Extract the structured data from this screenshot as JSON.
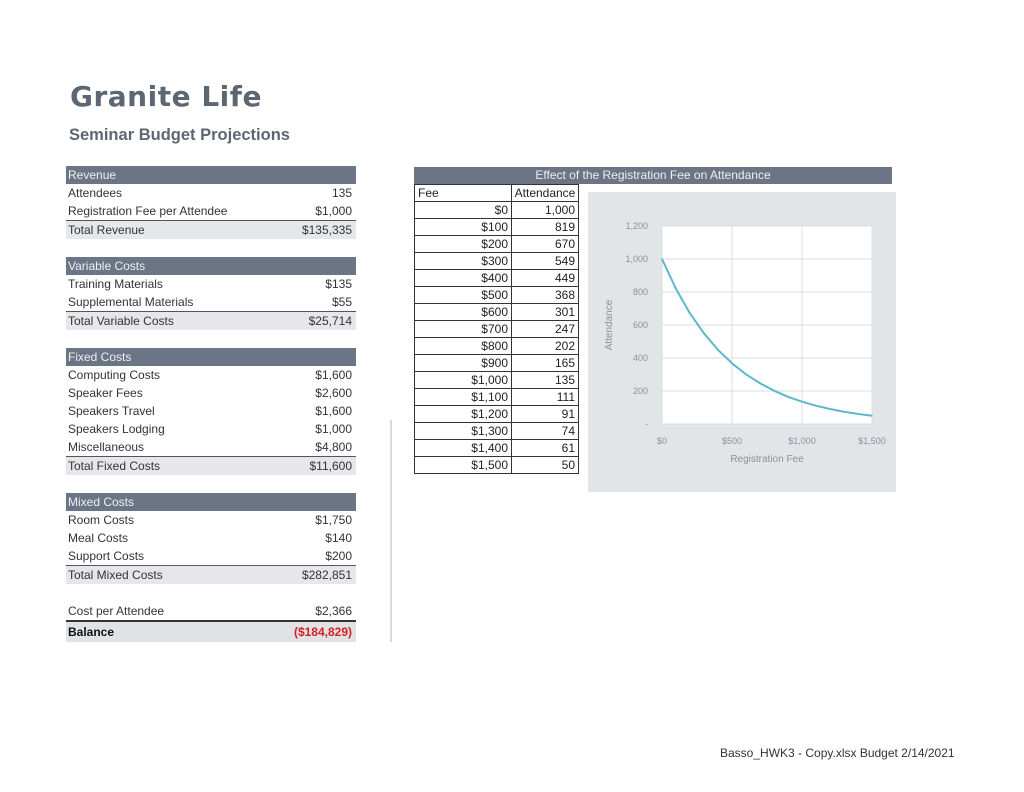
{
  "header": {
    "brand": "Granite Life",
    "subtitle": "Seminar Budget Projections"
  },
  "budget": {
    "revenue": {
      "heading": "Revenue",
      "rows": [
        {
          "label": "Attendees",
          "value": "135"
        },
        {
          "label": "Registration Fee per Attendee",
          "value": "$1,000"
        }
      ],
      "total": {
        "label": "Total Revenue",
        "value": "$135,335"
      }
    },
    "variable": {
      "heading": "Variable Costs",
      "rows": [
        {
          "label": "Training Materials",
          "value": "$135"
        },
        {
          "label": "Supplemental Materials",
          "value": "$55"
        }
      ],
      "total": {
        "label": "Total Variable Costs",
        "value": "$25,714"
      }
    },
    "fixed": {
      "heading": "Fixed Costs",
      "rows": [
        {
          "label": "Computing Costs",
          "value": "$1,600"
        },
        {
          "label": "Speaker Fees",
          "value": "$2,600"
        },
        {
          "label": "Speakers Travel",
          "value": "$1,600"
        },
        {
          "label": "Speakers Lodging",
          "value": "$1,000"
        },
        {
          "label": "Miscellaneous",
          "value": "$4,800"
        }
      ],
      "total": {
        "label": "Total Fixed Costs",
        "value": "$11,600"
      }
    },
    "mixed": {
      "heading": "Mixed Costs",
      "rows": [
        {
          "label": "Room Costs",
          "value": "$1,750"
        },
        {
          "label": "Meal Costs",
          "value": "$140"
        },
        {
          "label": "Support Costs",
          "value": "$200"
        }
      ],
      "total": {
        "label": "Total Mixed Costs",
        "value": "$282,851"
      }
    },
    "summary": {
      "cost_per_attendee_label": "Cost per Attendee",
      "cost_per_attendee_value": "$2,366",
      "balance_label": "Balance",
      "balance_value": "($184,829)"
    }
  },
  "fee_table": {
    "title": "Effect of the Registration Fee on Attendance",
    "col_fee": "Fee",
    "col_attendance": "Attendance",
    "rows": [
      {
        "fee": "$0",
        "attendance": "1,000"
      },
      {
        "fee": "$100",
        "attendance": "819"
      },
      {
        "fee": "$200",
        "attendance": "670"
      },
      {
        "fee": "$300",
        "attendance": "549"
      },
      {
        "fee": "$400",
        "attendance": "449"
      },
      {
        "fee": "$500",
        "attendance": "368"
      },
      {
        "fee": "$600",
        "attendance": "301"
      },
      {
        "fee": "$700",
        "attendance": "247"
      },
      {
        "fee": "$800",
        "attendance": "202"
      },
      {
        "fee": "$900",
        "attendance": "165"
      },
      {
        "fee": "$1,000",
        "attendance": "135"
      },
      {
        "fee": "$1,100",
        "attendance": "111"
      },
      {
        "fee": "$1,200",
        "attendance": "91"
      },
      {
        "fee": "$1,300",
        "attendance": "74"
      },
      {
        "fee": "$1,400",
        "attendance": "61"
      },
      {
        "fee": "$1,500",
        "attendance": "50"
      }
    ]
  },
  "chart_data": {
    "type": "line",
    "title": "",
    "xlabel": "Registration Fee",
    "ylabel": "Attendance",
    "xlim": [
      0,
      1500
    ],
    "ylim": [
      0,
      1200
    ],
    "x_ticks": [
      0,
      500,
      1000,
      1500
    ],
    "x_tick_labels": [
      "$0",
      "$500",
      "$1,000",
      "$1,500"
    ],
    "y_ticks": [
      0,
      200,
      400,
      600,
      800,
      1000,
      1200
    ],
    "y_tick_labels": [
      "-",
      "200",
      "400",
      "600",
      "800",
      "1,000",
      "1,200"
    ],
    "grid": true,
    "series": [
      {
        "name": "Attendance",
        "color": "#5bb8cc",
        "x": [
          0,
          100,
          200,
          300,
          400,
          500,
          600,
          700,
          800,
          900,
          1000,
          1100,
          1200,
          1300,
          1400,
          1500
        ],
        "y": [
          1000,
          819,
          670,
          549,
          449,
          368,
          301,
          247,
          202,
          165,
          135,
          111,
          91,
          74,
          61,
          50
        ]
      }
    ]
  },
  "footer": {
    "text": "Basso_HWK3 - Copy.xlsx Budget 2/14/2021"
  },
  "colors": {
    "header_fill": "#6b7585",
    "total_fill": "#e5e7ea",
    "negative": "#d42020",
    "line": "#5bb8cc",
    "chart_bg": "#e2e5e8"
  }
}
